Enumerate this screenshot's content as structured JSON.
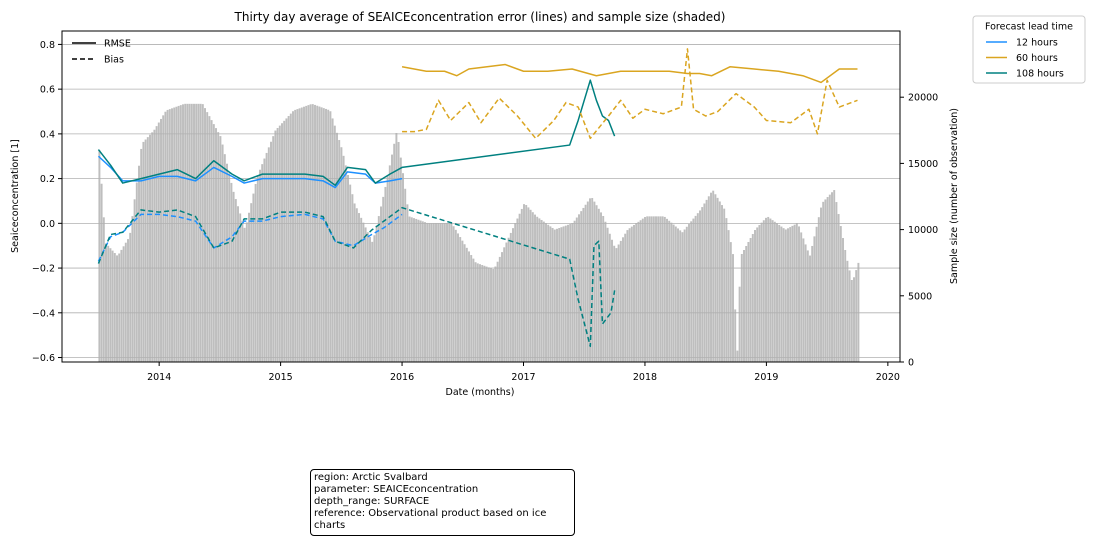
{
  "chart_data": {
    "type": "line",
    "title": "Thirty day average of SEAICEconcentration error (lines) and sample size (shaded)",
    "xlabel": "Date (months)",
    "ylabel": "Seaiceconcentration [1]",
    "y2label": "Sample size (number of observation)",
    "xlim": [
      2013.2,
      2020.1
    ],
    "ylim": [
      -0.62,
      0.86
    ],
    "y2lim": [
      0,
      25000
    ],
    "xticks": [
      2014,
      2015,
      2016,
      2017,
      2018,
      2019,
      2020
    ],
    "yticks": [
      -0.6,
      -0.4,
      -0.2,
      0.0,
      0.2,
      0.4,
      0.6,
      0.8
    ],
    "y2ticks": [
      0,
      5000,
      10000,
      15000,
      20000
    ],
    "grid": "horizontal",
    "style_legend": {
      "position": "top-left",
      "entries": [
        {
          "label": "RMSE",
          "dash": "solid"
        },
        {
          "label": "Bias",
          "dash": "dashed"
        }
      ]
    },
    "lead_legend": {
      "title": "Forecast lead time",
      "position": "outside-top-right",
      "entries": [
        {
          "label": "12 hours",
          "color": "#1e90ff"
        },
        {
          "label": "60 hours",
          "color": "#daa520"
        },
        {
          "label": "108 hours",
          "color": "#008080"
        }
      ]
    },
    "sample_size": {
      "color": "#bebebe",
      "points": [
        [
          2013.5,
          16000
        ],
        [
          2013.55,
          9000
        ],
        [
          2013.65,
          8000
        ],
        [
          2013.75,
          9500
        ],
        [
          2013.85,
          16500
        ],
        [
          2013.95,
          17500
        ],
        [
          2014.05,
          19000
        ],
        [
          2014.2,
          19500
        ],
        [
          2014.35,
          19500
        ],
        [
          2014.5,
          17000
        ],
        [
          2014.6,
          13000
        ],
        [
          2014.7,
          10000
        ],
        [
          2014.8,
          14000
        ],
        [
          2014.95,
          17500
        ],
        [
          2015.1,
          19000
        ],
        [
          2015.25,
          19500
        ],
        [
          2015.4,
          19000
        ],
        [
          2015.5,
          16000
        ],
        [
          2015.6,
          12000
        ],
        [
          2015.75,
          9000
        ],
        [
          2015.85,
          13000
        ],
        [
          2015.95,
          17500
        ],
        [
          2016.05,
          11000
        ],
        [
          2016.2,
          10500
        ],
        [
          2016.4,
          10500
        ],
        [
          2016.5,
          9000
        ],
        [
          2016.6,
          7500
        ],
        [
          2016.75,
          7000
        ],
        [
          2016.85,
          9000
        ],
        [
          2017.0,
          12000
        ],
        [
          2017.1,
          11000
        ],
        [
          2017.25,
          10000
        ],
        [
          2017.4,
          10500
        ],
        [
          2017.55,
          12500
        ],
        [
          2017.65,
          11000
        ],
        [
          2017.75,
          8500
        ],
        [
          2017.85,
          10000
        ],
        [
          2018.0,
          11000
        ],
        [
          2018.15,
          11000
        ],
        [
          2018.3,
          9800
        ],
        [
          2018.45,
          11500
        ],
        [
          2018.55,
          13000
        ],
        [
          2018.65,
          11500
        ],
        [
          2018.72,
          8000
        ],
        [
          2018.75,
          0
        ],
        [
          2018.78,
          8000
        ],
        [
          2018.9,
          10000
        ],
        [
          2019.0,
          11000
        ],
        [
          2019.15,
          10000
        ],
        [
          2019.25,
          10500
        ],
        [
          2019.35,
          8000
        ],
        [
          2019.45,
          12000
        ],
        [
          2019.55,
          13000
        ],
        [
          2019.65,
          8000
        ],
        [
          2019.7,
          6000
        ],
        [
          2019.75,
          7500
        ]
      ]
    },
    "series": [
      {
        "name": "12 hours",
        "metric": "RMSE",
        "color": "#1e90ff",
        "dash": "solid",
        "points": [
          [
            2013.5,
            0.3
          ],
          [
            2013.6,
            0.25
          ],
          [
            2013.7,
            0.19
          ],
          [
            2013.85,
            0.19
          ],
          [
            2014.0,
            0.21
          ],
          [
            2014.15,
            0.21
          ],
          [
            2014.3,
            0.19
          ],
          [
            2014.45,
            0.25
          ],
          [
            2014.6,
            0.21
          ],
          [
            2014.7,
            0.18
          ],
          [
            2014.85,
            0.2
          ],
          [
            2015.0,
            0.2
          ],
          [
            2015.2,
            0.2
          ],
          [
            2015.35,
            0.19
          ],
          [
            2015.45,
            0.16
          ],
          [
            2015.55,
            0.23
          ],
          [
            2015.7,
            0.22
          ],
          [
            2015.78,
            0.18
          ],
          [
            2015.9,
            0.19
          ],
          [
            2016.0,
            0.2
          ]
        ]
      },
      {
        "name": "12 hours",
        "metric": "Bias",
        "color": "#1e90ff",
        "dash": "dashed",
        "points": [
          [
            2013.5,
            -0.17
          ],
          [
            2013.6,
            -0.06
          ],
          [
            2013.7,
            -0.04
          ],
          [
            2013.85,
            0.04
          ],
          [
            2014.0,
            0.04
          ],
          [
            2014.15,
            0.03
          ],
          [
            2014.3,
            0.01
          ],
          [
            2014.45,
            -0.11
          ],
          [
            2014.6,
            -0.06
          ],
          [
            2014.7,
            0.01
          ],
          [
            2014.85,
            0.01
          ],
          [
            2015.0,
            0.03
          ],
          [
            2015.2,
            0.04
          ],
          [
            2015.35,
            0.02
          ],
          [
            2015.45,
            -0.08
          ],
          [
            2015.6,
            -0.1
          ],
          [
            2015.75,
            -0.05
          ],
          [
            2015.85,
            -0.02
          ],
          [
            2016.0,
            0.04
          ]
        ]
      },
      {
        "name": "108 hours",
        "metric": "RMSE",
        "color": "#008080",
        "dash": "solid",
        "points": [
          [
            2013.5,
            0.33
          ],
          [
            2013.6,
            0.26
          ],
          [
            2013.7,
            0.18
          ],
          [
            2013.85,
            0.2
          ],
          [
            2014.0,
            0.22
          ],
          [
            2014.15,
            0.24
          ],
          [
            2014.3,
            0.2
          ],
          [
            2014.45,
            0.28
          ],
          [
            2014.6,
            0.22
          ],
          [
            2014.7,
            0.19
          ],
          [
            2014.85,
            0.22
          ],
          [
            2015.0,
            0.22
          ],
          [
            2015.2,
            0.22
          ],
          [
            2015.35,
            0.21
          ],
          [
            2015.45,
            0.17
          ],
          [
            2015.55,
            0.25
          ],
          [
            2015.7,
            0.24
          ],
          [
            2015.78,
            0.18
          ],
          [
            2015.9,
            0.22
          ],
          [
            2016.0,
            0.25
          ],
          [
            2017.38,
            0.35
          ],
          [
            2017.45,
            0.46
          ],
          [
            2017.55,
            0.64
          ],
          [
            2017.6,
            0.55
          ],
          [
            2017.65,
            0.48
          ],
          [
            2017.7,
            0.46
          ],
          [
            2017.75,
            0.39
          ]
        ]
      },
      {
        "name": "108 hours",
        "metric": "Bias",
        "color": "#008080",
        "dash": "dashed",
        "points": [
          [
            2013.5,
            -0.18
          ],
          [
            2013.6,
            -0.05
          ],
          [
            2013.7,
            -0.04
          ],
          [
            2013.85,
            0.06
          ],
          [
            2014.0,
            0.05
          ],
          [
            2014.15,
            0.06
          ],
          [
            2014.3,
            0.03
          ],
          [
            2014.45,
            -0.11
          ],
          [
            2014.6,
            -0.08
          ],
          [
            2014.7,
            0.02
          ],
          [
            2014.85,
            0.02
          ],
          [
            2015.0,
            0.05
          ],
          [
            2015.2,
            0.05
          ],
          [
            2015.35,
            0.03
          ],
          [
            2015.45,
            -0.08
          ],
          [
            2015.6,
            -0.11
          ],
          [
            2015.75,
            -0.03
          ],
          [
            2015.85,
            0.01
          ],
          [
            2016.0,
            0.07
          ],
          [
            2017.38,
            -0.16
          ],
          [
            2017.45,
            -0.34
          ],
          [
            2017.55,
            -0.55
          ],
          [
            2017.58,
            -0.1
          ],
          [
            2017.62,
            -0.08
          ],
          [
            2017.65,
            -0.45
          ],
          [
            2017.72,
            -0.4
          ],
          [
            2017.75,
            -0.3
          ]
        ]
      },
      {
        "name": "60 hours",
        "metric": "RMSE",
        "color": "#daa520",
        "dash": "solid",
        "points": [
          [
            2016.0,
            0.7
          ],
          [
            2016.1,
            0.69
          ],
          [
            2016.2,
            0.68
          ],
          [
            2016.35,
            0.68
          ],
          [
            2016.45,
            0.66
          ],
          [
            2016.55,
            0.69
          ],
          [
            2016.7,
            0.7
          ],
          [
            2016.85,
            0.71
          ],
          [
            2017.0,
            0.68
          ],
          [
            2017.2,
            0.68
          ],
          [
            2017.4,
            0.69
          ],
          [
            2017.6,
            0.66
          ],
          [
            2017.8,
            0.68
          ],
          [
            2018.0,
            0.68
          ],
          [
            2018.2,
            0.68
          ],
          [
            2018.35,
            0.67
          ],
          [
            2018.45,
            0.67
          ],
          [
            2018.55,
            0.66
          ],
          [
            2018.7,
            0.7
          ],
          [
            2018.9,
            0.69
          ],
          [
            2019.1,
            0.68
          ],
          [
            2019.3,
            0.66
          ],
          [
            2019.45,
            0.63
          ],
          [
            2019.6,
            0.69
          ],
          [
            2019.75,
            0.69
          ]
        ]
      },
      {
        "name": "60 hours",
        "metric": "Bias",
        "color": "#daa520",
        "dash": "dashed",
        "points": [
          [
            2016.0,
            0.41
          ],
          [
            2016.1,
            0.41
          ],
          [
            2016.2,
            0.42
          ],
          [
            2016.3,
            0.55
          ],
          [
            2016.4,
            0.46
          ],
          [
            2016.55,
            0.54
          ],
          [
            2016.65,
            0.45
          ],
          [
            2016.8,
            0.56
          ],
          [
            2016.95,
            0.48
          ],
          [
            2017.1,
            0.38
          ],
          [
            2017.25,
            0.46
          ],
          [
            2017.35,
            0.54
          ],
          [
            2017.45,
            0.52
          ],
          [
            2017.55,
            0.38
          ],
          [
            2017.7,
            0.48
          ],
          [
            2017.8,
            0.55
          ],
          [
            2017.9,
            0.47
          ],
          [
            2018.0,
            0.51
          ],
          [
            2018.15,
            0.49
          ],
          [
            2018.3,
            0.52
          ],
          [
            2018.35,
            0.78
          ],
          [
            2018.4,
            0.51
          ],
          [
            2018.5,
            0.48
          ],
          [
            2018.6,
            0.5
          ],
          [
            2018.75,
            0.58
          ],
          [
            2018.9,
            0.52
          ],
          [
            2019.0,
            0.46
          ],
          [
            2019.2,
            0.45
          ],
          [
            2019.35,
            0.51
          ],
          [
            2019.42,
            0.4
          ],
          [
            2019.5,
            0.64
          ],
          [
            2019.6,
            0.52
          ],
          [
            2019.75,
            0.55
          ]
        ]
      }
    ]
  },
  "info": {
    "region": "region: Arctic Svalbard",
    "parameter": "parameter: SEAICEconcentration",
    "depth_range": "depth_range: SURFACE",
    "reference": "reference: Observational product based on ice charts"
  }
}
